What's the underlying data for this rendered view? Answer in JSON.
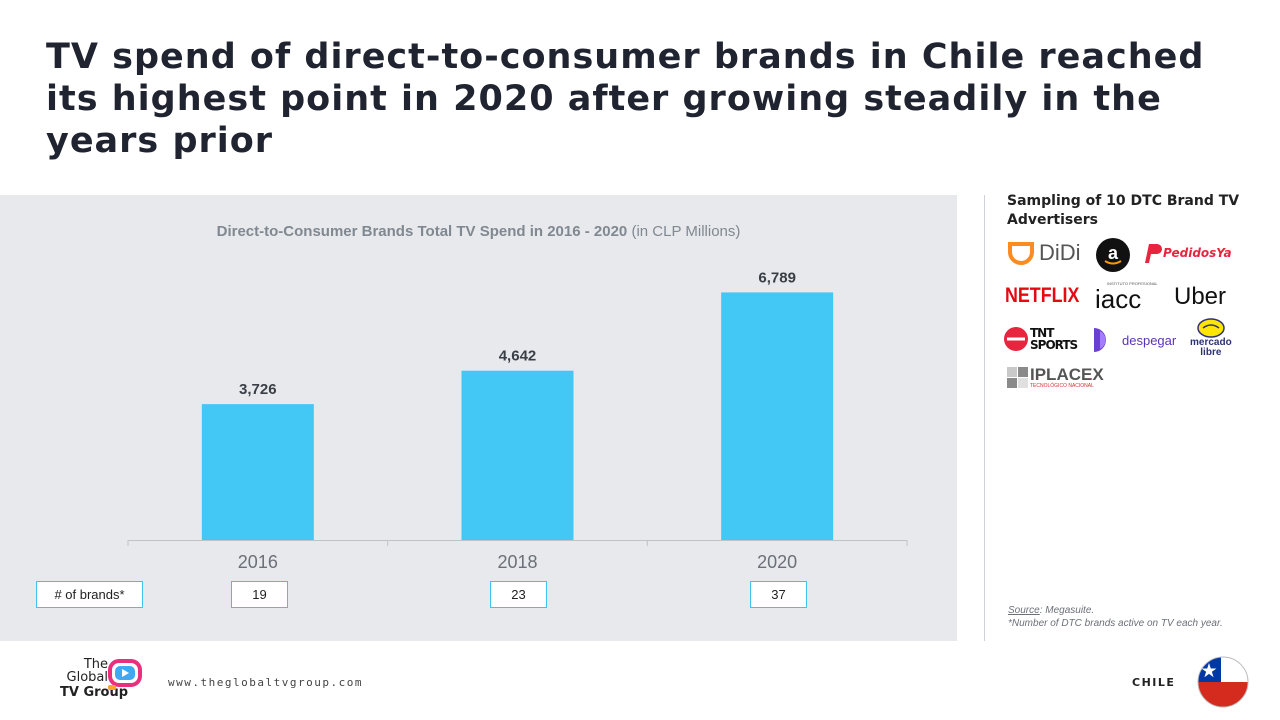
{
  "title": "TV spend of direct-to-consumer brands in Chile reached its highest point in 2020 after growing steadily in the years prior",
  "chart_heading": {
    "bold": "Direct-to-Consumer Brands Total TV Spend in 2016 - 2020",
    "normal": "(in CLP Millions)"
  },
  "chart_data": {
    "type": "bar",
    "title": "Direct-to-Consumer Brands Total TV Spend in 2016 - 2020 (in CLP Millions)",
    "categories": [
      "2016",
      "2018",
      "2020"
    ],
    "values": [
      3726,
      4642,
      6789
    ],
    "value_labels": [
      "3,726",
      "4,642",
      "6,789"
    ],
    "ylim": [
      0,
      8500
    ],
    "grid": false,
    "bar_color": "#43c8f5"
  },
  "brands_row": {
    "label": "# of brands*",
    "counts": [
      "19",
      "23",
      "37"
    ]
  },
  "sidebar": {
    "title": "Sampling of 10 DTC Brand TV Advertisers",
    "logos": {
      "didi": "DiDi",
      "amazon": "a",
      "pedidosya": "PedidosYa",
      "netflix": "NETFLIX",
      "iacc": "iacc",
      "iacc_small": "INSTITUTO PROFESIONAL",
      "uber": "Uber",
      "tnt_line1": "TNT",
      "tnt_line2": "SPORTS",
      "despegar": "despegar",
      "mercado_line1": "mercado",
      "mercado_line2": "libre",
      "iplacex": "IPLACEX",
      "iplacex_small": "TECNOLÓGICO NACIONAL"
    }
  },
  "source": {
    "label": "Source",
    "text": ": Megasuite.",
    "note": "*Number of DTC brands active on TV each year."
  },
  "footer": {
    "logo_line1": "The",
    "logo_line2": "Global",
    "logo_line3": "TV Group",
    "url": "www.theglobaltvgroup.com",
    "country": "CHILE"
  },
  "colors": {
    "accent": "#43c8f5",
    "panel": "#e8e9ec",
    "netflix": "#e50914",
    "pedidosya": "#e8253f",
    "didi": "#fc8c22"
  }
}
